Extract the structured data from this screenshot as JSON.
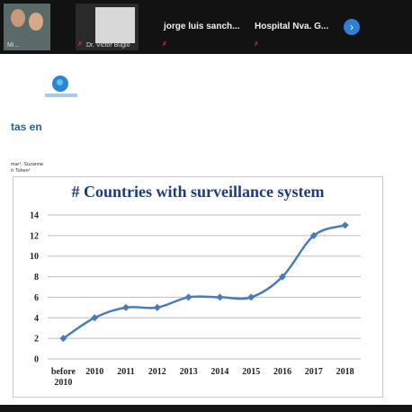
{
  "participants": [
    {
      "name": "Mi...",
      "mic_muted": false
    },
    {
      "name": "Dr. Victor Bugio",
      "mic_muted": true
    },
    {
      "name": "jorge luis sanch...",
      "mic_muted": true
    },
    {
      "name": "Hospital Nva. G...",
      "mic_muted": true
    }
  ],
  "next_icon": "chevron-right-icon",
  "slide": {
    "title_fragment": "tas en",
    "authors_fragment": [
      "mar¹, Suzanne",
      "h Tohen¹"
    ],
    "accent_color": "#1e63ad"
  },
  "chart_data": {
    "type": "line",
    "title": "# Countries with surveillance system",
    "categories": [
      "before 2010",
      "2010",
      "2011",
      "2012",
      "2013",
      "2014",
      "2015",
      "2016",
      "2017",
      "2018"
    ],
    "values": [
      2,
      4,
      5,
      5,
      6,
      6,
      6,
      8,
      12,
      13
    ],
    "yticks": [
      0,
      2,
      4,
      6,
      8,
      10,
      12,
      14
    ],
    "ylim": [
      0,
      14
    ],
    "grid": true,
    "color": "#4a7bb7"
  }
}
